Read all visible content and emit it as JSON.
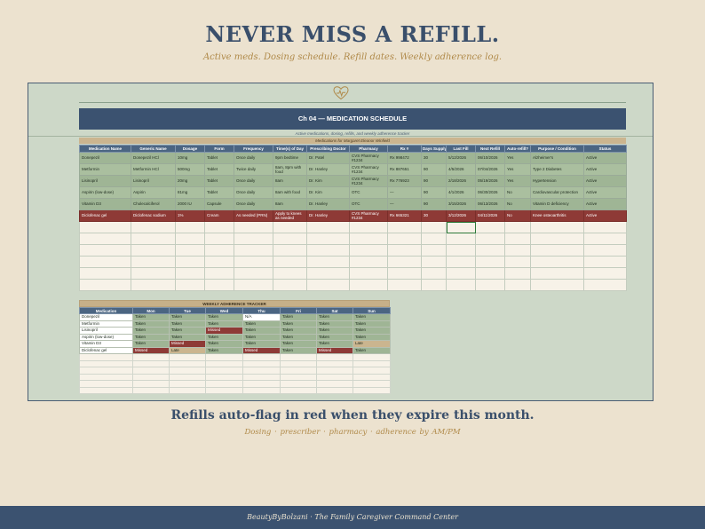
{
  "hero": {
    "title": "NEVER MISS A REFILL.",
    "subtitle": "Active meds. Dosing schedule. Refill dates. Weekly adherence log."
  },
  "sheet": {
    "logo_icon": "heart-pulse-icon",
    "banner_title": "Ch 04 — MEDICATION SCHEDULE",
    "banner_subtitle": "Active medications, dosing, refills, and weekly adherence tracker",
    "owner": "Medications for Margaret Eleanor Winfield"
  },
  "medications": {
    "headers": [
      "Medication Name",
      "Generic Name",
      "Dosage",
      "Form",
      "Frequency",
      "Time(s) of Day",
      "Prescribing Doctor",
      "Pharmacy",
      "Rx #",
      "Days Supply",
      "Last Fill",
      "Next Refill",
      "Auto-refill?",
      "Purpose / Condition",
      "Status"
    ],
    "rows": [
      {
        "cells": [
          "Donepezil",
          "Donepezil HCl",
          "10mg",
          "Tablet",
          "Once daily",
          "9pm bedtime",
          "Dr. Patel",
          "CVS Pharmacy #1234",
          "Rx 998472",
          "30",
          "5/12/2026",
          "06/10/2026",
          "Yes",
          "Alzheimer's",
          "Active"
        ],
        "flag": false
      },
      {
        "cells": [
          "Metformin",
          "Metformin HCl",
          "500mg",
          "Tablet",
          "Twice daily",
          "8am, 8pm with food",
          "Dr. Hanley",
          "CVS Pharmacy #1234",
          "Rx 887651",
          "90",
          "4/5/2026",
          "07/04/2026",
          "Yes",
          "Type 2 Diabetes",
          "Active"
        ],
        "flag": false
      },
      {
        "cells": [
          "Lisinopril",
          "Lisinopril",
          "20mg",
          "Tablet",
          "Once daily",
          "8am",
          "Dr. Kim",
          "CVS Pharmacy #1234",
          "Rx 776923",
          "90",
          "2/18/2026",
          "05/19/2026",
          "Yes",
          "Hypertension",
          "Active"
        ],
        "flag": false
      },
      {
        "cells": [
          "Aspirin (low-dose)",
          "Aspirin",
          "81mg",
          "Tablet",
          "Once daily",
          "8am with food",
          "Dr. Kim",
          "OTC",
          "—",
          "90",
          "4/1/2026",
          "06/30/2026",
          "No",
          "Cardiovascular protection",
          "Active"
        ],
        "flag": false
      },
      {
        "cells": [
          "Vitamin D3",
          "Cholecalciferol",
          "2000 IU",
          "Capsule",
          "Once daily",
          "8am",
          "Dr. Hanley",
          "OTC",
          "—",
          "90",
          "3/15/2026",
          "06/13/2026",
          "No",
          "Vitamin D deficiency",
          "Active"
        ],
        "flag": false
      },
      {
        "cells": [
          "Diclofenac gel",
          "Diclofenac sodium",
          "1%",
          "Cream",
          "As needed (PRN)",
          "Apply to knees as needed",
          "Dr. Hanley",
          "CVS Pharmacy #1234",
          "Rx 665321",
          "30",
          "3/12/2026",
          "04/11/2026",
          "No",
          "Knee osteoarthritis",
          "Active"
        ],
        "flag": true
      }
    ],
    "empty_rows": 6
  },
  "adherence": {
    "title": "WEEKLY ADHERENCE TRACKER",
    "headers": [
      "Medication",
      "Mon",
      "Tue",
      "Wed",
      "Thu",
      "Fri",
      "Sat",
      "Sun"
    ],
    "rows": [
      [
        "Donepezil",
        "Taken",
        "Taken",
        "Taken",
        "N/A",
        "Taken",
        "Taken",
        "Taken"
      ],
      [
        "Metformin",
        "Taken",
        "Taken",
        "Taken",
        "Taken",
        "Taken",
        "Taken",
        "Taken"
      ],
      [
        "Lisinopril",
        "Taken",
        "Taken",
        "Missed",
        "Taken",
        "Taken",
        "Taken",
        "Taken"
      ],
      [
        "Aspirin (low-dose)",
        "Taken",
        "Taken",
        "Taken",
        "Taken",
        "Taken",
        "Taken",
        "Taken"
      ],
      [
        "Vitamin D3",
        "Taken",
        "Missed",
        "Taken",
        "Taken",
        "Taken",
        "Taken",
        "Late"
      ],
      [
        "Diclofenac gel",
        "Missed",
        "Late",
        "Taken",
        "Missed",
        "Taken",
        "Missed",
        "Taken"
      ]
    ],
    "empty_rows": 6
  },
  "tagline": {
    "title": "Refills auto-flag in red when they expire this month.",
    "subtitle": "Dosing · prescriber · pharmacy · adherence by AM/PM"
  },
  "footer": {
    "text": "BeautyByBolzani · The Family Caregiver Command Center"
  },
  "colors": {
    "navy": "#3b5270",
    "gold": "#b08a4a",
    "taken": "#9fb595",
    "missed": "#8e3a36",
    "late": "#cbb58f",
    "sheet_bg": "#cdd8c8",
    "page_bg": "#ece2cf"
  }
}
